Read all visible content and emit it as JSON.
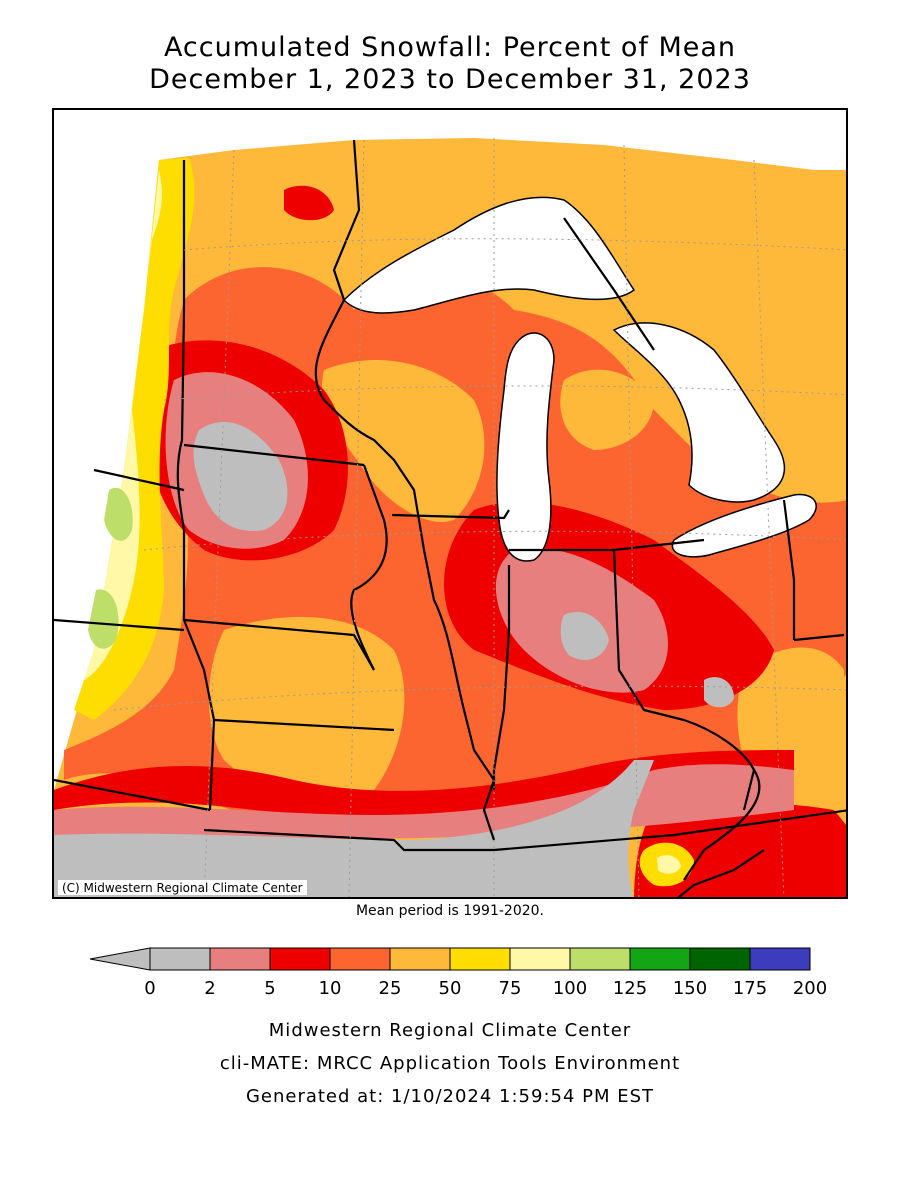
{
  "title": {
    "line1": "Accumulated Snowfall: Percent of Mean",
    "line2": "December 1, 2023 to December 31, 2023"
  },
  "map": {
    "credit": "(C) Midwestern Regional Climate Center",
    "mean_period": "Mean period is 1991-2020."
  },
  "legend": {
    "ticks": [
      "0",
      "2",
      "5",
      "10",
      "25",
      "50",
      "75",
      "100",
      "125",
      "150",
      "175",
      "200"
    ],
    "bins": [
      {
        "range": "0-2",
        "color": "#bebebe"
      },
      {
        "range": "2-5",
        "color": "#e87f7f"
      },
      {
        "range": "5-10",
        "color": "#ee0000"
      },
      {
        "range": "10-25",
        "color": "#fd6530"
      },
      {
        "range": "25-50",
        "color": "#feb83a"
      },
      {
        "range": "50-75",
        "color": "#fedd00"
      },
      {
        "range": "75-100",
        "color": "#fff8a6"
      },
      {
        "range": "100-125",
        "color": "#bede6a"
      },
      {
        "range": "125-150",
        "color": "#13a515"
      },
      {
        "range": "150-175",
        "color": "#006400"
      },
      {
        "range": "175-200",
        "color": "#3c3cbc"
      }
    ],
    "under_color": "#bebebe"
  },
  "footer": {
    "line1": "Midwestern Regional Climate Center",
    "line2": "cli-MATE: MRCC Application Tools Environment",
    "line3": "Generated at: 1/10/2024 1:59:54 PM EST"
  }
}
